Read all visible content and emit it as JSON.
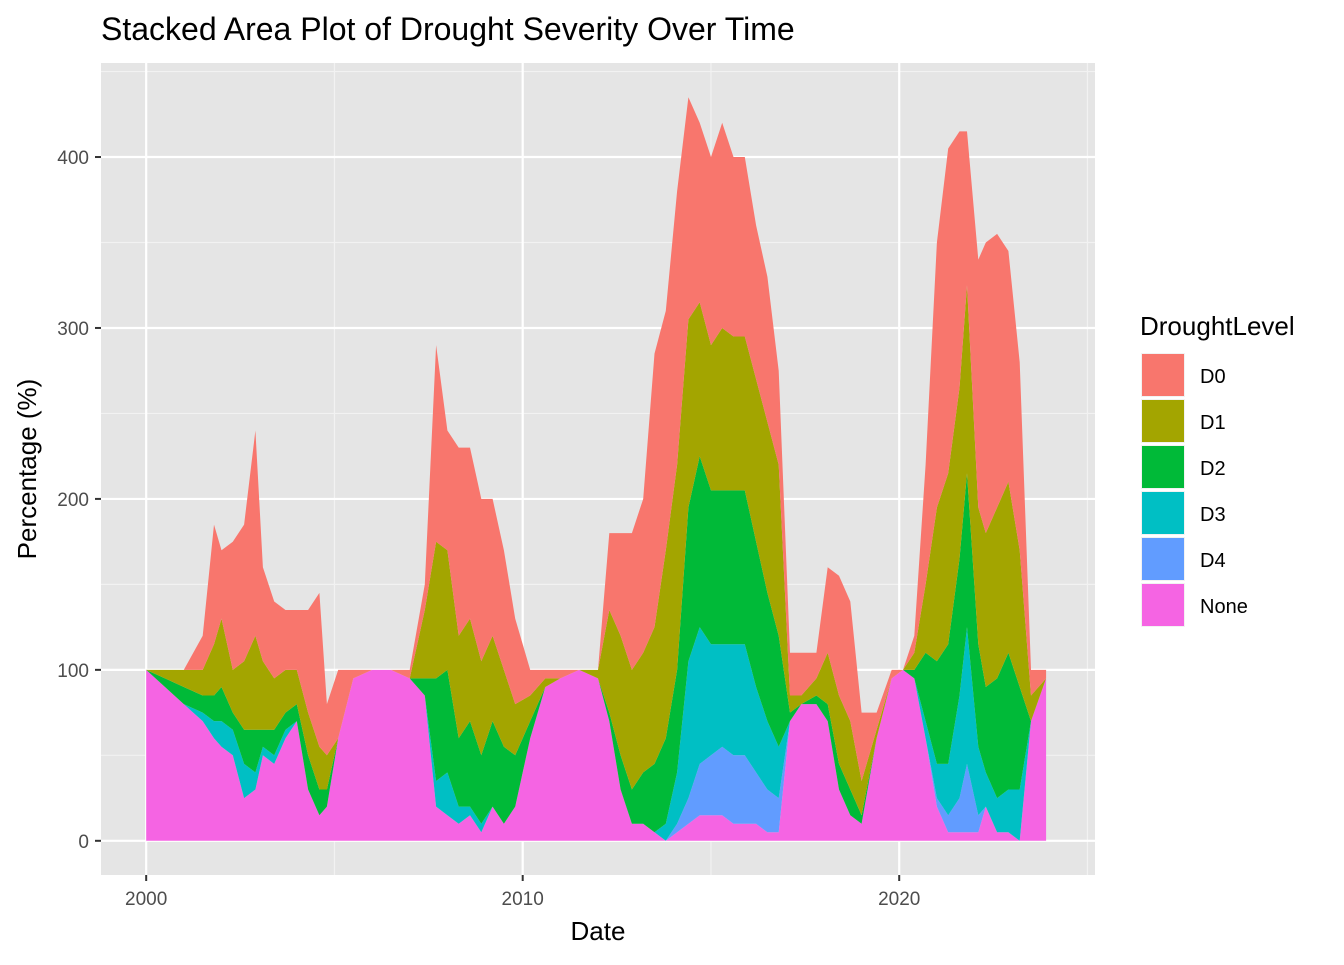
{
  "chart_data": {
    "type": "area",
    "stacked": true,
    "title": "Stacked Area Plot of Drought Severity Over Time",
    "xlabel": "Date",
    "ylabel": "Percentage (%)",
    "xlim": [
      1998.8,
      2025.2
    ],
    "ylim": [
      -20,
      455
    ],
    "x_ticks": [
      2000,
      2010,
      2020
    ],
    "x_tick_labels": [
      "2000",
      "2010",
      "2020"
    ],
    "y_ticks": [
      0,
      100,
      200,
      300,
      400
    ],
    "y_tick_labels": [
      "0",
      "100",
      "200",
      "300",
      "400"
    ],
    "grid": true,
    "panel_background": "#e5e5e5",
    "legend": {
      "title": "DroughtLevel",
      "position": "right",
      "entries": [
        {
          "label": "D0",
          "color": "#F8766D"
        },
        {
          "label": "D1",
          "color": "#A3A500"
        },
        {
          "label": "D2",
          "color": "#00BA38"
        },
        {
          "label": "D3",
          "color": "#00BFC4"
        },
        {
          "label": "D4",
          "color": "#619CFF"
        },
        {
          "label": "None",
          "color": "#F564E3"
        }
      ]
    },
    "stack_order_bottom_to_top": [
      "None",
      "D4",
      "D3",
      "D2",
      "D1",
      "D0"
    ],
    "x": [
      2000.0,
      2000.5,
      2001.0,
      2001.5,
      2001.8,
      2002.0,
      2002.3,
      2002.6,
      2002.9,
      2003.1,
      2003.4,
      2003.7,
      2004.0,
      2004.3,
      2004.6,
      2004.8,
      2005.1,
      2005.5,
      2006.0,
      2006.5,
      2007.0,
      2007.4,
      2007.7,
      2008.0,
      2008.3,
      2008.6,
      2008.9,
      2009.2,
      2009.5,
      2009.8,
      2010.2,
      2010.6,
      2011.0,
      2011.5,
      2012.0,
      2012.3,
      2012.6,
      2012.9,
      2013.2,
      2013.5,
      2013.8,
      2014.1,
      2014.4,
      2014.7,
      2015.0,
      2015.3,
      2015.6,
      2015.9,
      2016.2,
      2016.5,
      2016.8,
      2017.1,
      2017.4,
      2017.8,
      2018.1,
      2018.4,
      2018.7,
      2019.0,
      2019.4,
      2019.8,
      2020.1,
      2020.4,
      2020.7,
      2021.0,
      2021.3,
      2021.6,
      2021.8,
      2022.1,
      2022.3,
      2022.6,
      2022.9,
      2023.2,
      2023.5,
      2023.9
    ],
    "series": [
      {
        "name": "None",
        "values": [
          100,
          90,
          80,
          70,
          60,
          55,
          50,
          25,
          30,
          50,
          45,
          60,
          70,
          30,
          15,
          20,
          60,
          95,
          100,
          100,
          95,
          85,
          20,
          15,
          10,
          15,
          5,
          20,
          10,
          20,
          60,
          90,
          95,
          100,
          95,
          70,
          30,
          10,
          10,
          5,
          0,
          5,
          10,
          15,
          15,
          15,
          10,
          10,
          10,
          5,
          5,
          70,
          80,
          80,
          70,
          30,
          15,
          10,
          60,
          95,
          100,
          95,
          60,
          20,
          5,
          5,
          5,
          5,
          20,
          5,
          5,
          0,
          70,
          95
        ]
      },
      {
        "name": "D4",
        "values": [
          0,
          0,
          0,
          0,
          0,
          0,
          0,
          0,
          0,
          0,
          0,
          0,
          0,
          0,
          0,
          0,
          0,
          0,
          0,
          0,
          0,
          0,
          0,
          0,
          0,
          0,
          0,
          0,
          0,
          0,
          0,
          0,
          0,
          0,
          0,
          0,
          0,
          0,
          0,
          0,
          0,
          5,
          15,
          30,
          35,
          40,
          40,
          40,
          30,
          25,
          20,
          0,
          0,
          0,
          0,
          0,
          0,
          0,
          0,
          0,
          0,
          0,
          0,
          5,
          10,
          20,
          40,
          10,
          0,
          0,
          0,
          0,
          0,
          0
        ]
      },
      {
        "name": "D3",
        "values": [
          0,
          0,
          0,
          5,
          10,
          15,
          15,
          20,
          10,
          5,
          5,
          5,
          0,
          0,
          0,
          0,
          0,
          0,
          0,
          0,
          0,
          0,
          15,
          25,
          10,
          5,
          5,
          0,
          0,
          0,
          0,
          0,
          0,
          0,
          0,
          0,
          0,
          0,
          0,
          0,
          10,
          30,
          80,
          80,
          65,
          60,
          65,
          65,
          50,
          40,
          30,
          0,
          0,
          0,
          0,
          0,
          0,
          0,
          0,
          0,
          0,
          0,
          10,
          20,
          30,
          60,
          80,
          40,
          20,
          20,
          25,
          30,
          0,
          0
        ]
      },
      {
        "name": "D2",
        "values": [
          0,
          5,
          10,
          10,
          15,
          20,
          10,
          20,
          25,
          10,
          15,
          10,
          10,
          20,
          15,
          10,
          0,
          0,
          0,
          0,
          0,
          10,
          60,
          60,
          40,
          50,
          40,
          50,
          45,
          30,
          10,
          0,
          0,
          0,
          0,
          5,
          20,
          20,
          30,
          40,
          50,
          60,
          90,
          100,
          90,
          90,
          90,
          90,
          85,
          75,
          65,
          5,
          0,
          5,
          10,
          15,
          15,
          5,
          0,
          0,
          0,
          5,
          40,
          60,
          70,
          80,
          90,
          60,
          50,
          70,
          80,
          60,
          0,
          0
        ]
      },
      {
        "name": "D1",
        "values": [
          0,
          5,
          10,
          15,
          30,
          40,
          25,
          40,
          55,
          40,
          30,
          25,
          20,
          25,
          25,
          20,
          0,
          0,
          0,
          0,
          0,
          40,
          80,
          70,
          60,
          60,
          55,
          50,
          45,
          30,
          15,
          5,
          0,
          0,
          5,
          60,
          70,
          70,
          70,
          80,
          110,
          120,
          110,
          90,
          85,
          95,
          90,
          90,
          95,
          100,
          100,
          10,
          5,
          10,
          30,
          40,
          40,
          20,
          5,
          0,
          0,
          10,
          40,
          90,
          100,
          100,
          110,
          80,
          90,
          100,
          100,
          80,
          15,
          0
        ]
      },
      {
        "name": "D0",
        "values": [
          0,
          0,
          0,
          20,
          70,
          40,
          75,
          80,
          120,
          55,
          45,
          35,
          35,
          60,
          90,
          30,
          40,
          5,
          0,
          0,
          5,
          15,
          115,
          70,
          110,
          100,
          95,
          80,
          70,
          50,
          15,
          5,
          5,
          0,
          0,
          45,
          60,
          80,
          90,
          160,
          140,
          160,
          130,
          105,
          110,
          120,
          105,
          105,
          90,
          85,
          55,
          25,
          25,
          15,
          50,
          70,
          70,
          40,
          10,
          5,
          0,
          10,
          70,
          155,
          190,
          150,
          90,
          145,
          170,
          160,
          135,
          110,
          15,
          5
        ]
      }
    ]
  }
}
